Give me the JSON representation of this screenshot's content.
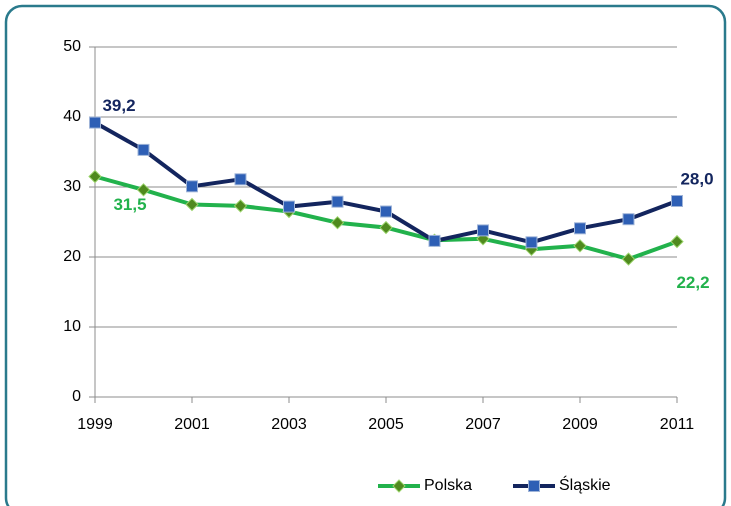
{
  "chart_data": {
    "type": "line",
    "x": [
      1999,
      2000,
      2001,
      2002,
      2003,
      2004,
      2005,
      2006,
      2007,
      2008,
      2009,
      2010,
      2011
    ],
    "xlim": [
      1999,
      2011
    ],
    "xticks": [
      1999,
      2001,
      2003,
      2005,
      2007,
      2009,
      2011
    ],
    "ylim": [
      0,
      50
    ],
    "yticks": [
      0,
      10,
      20,
      30,
      40,
      50
    ],
    "grid": true,
    "legend": "bottom",
    "series": [
      {
        "name": "Polska",
        "color": "#22b24c",
        "marker": "diamond",
        "values": [
          31.5,
          29.6,
          27.5,
          27.3,
          26.5,
          24.9,
          24.2,
          22.4,
          22.6,
          21.1,
          21.6,
          19.7,
          22.2
        ],
        "value_labels": [
          "31,5",
          null,
          null,
          null,
          null,
          null,
          null,
          null,
          null,
          null,
          null,
          null,
          "22,2"
        ]
      },
      {
        "name": "Śląskie",
        "color": "#13255e",
        "marker": "square",
        "values": [
          39.2,
          35.3,
          30.1,
          31.1,
          27.2,
          27.9,
          26.5,
          22.3,
          23.8,
          22.1,
          24.1,
          25.4,
          28.0
        ],
        "value_labels": [
          "39,2",
          null,
          null,
          null,
          null,
          null,
          null,
          null,
          null,
          null,
          null,
          null,
          "28,0"
        ]
      }
    ]
  }
}
